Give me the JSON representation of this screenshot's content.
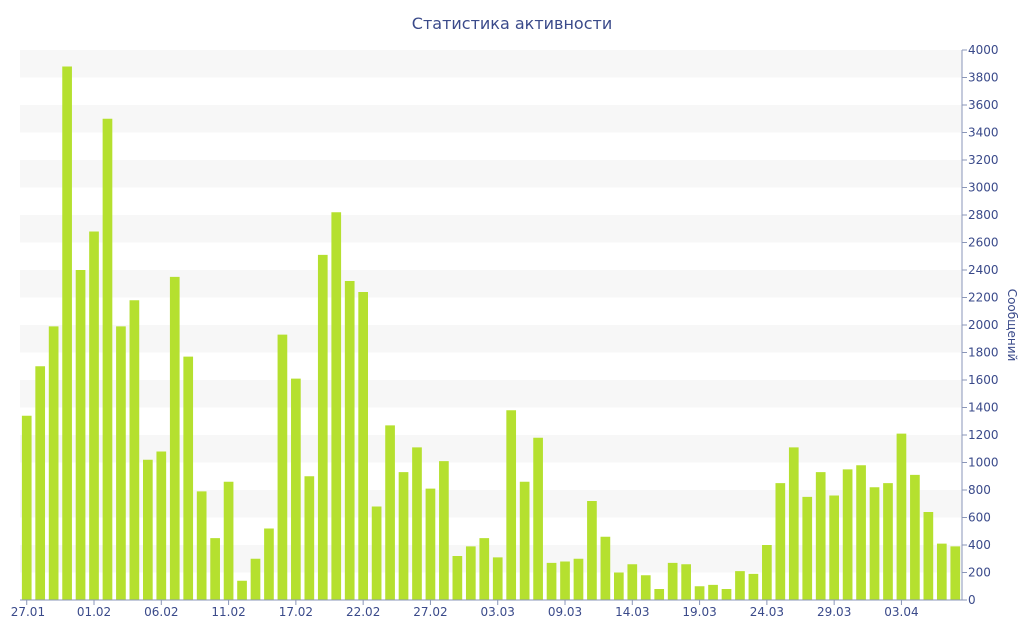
{
  "chart_data": {
    "type": "bar",
    "title": "Статистика активности",
    "ylabel": "Сообщений",
    "xlabel": "",
    "ylim": [
      0,
      4000
    ],
    "yticks": [
      0,
      200,
      400,
      600,
      800,
      1000,
      1200,
      1400,
      1600,
      1800,
      2000,
      2200,
      2400,
      2600,
      2800,
      3000,
      3200,
      3400,
      3600,
      3800,
      4000
    ],
    "y_axis_position": "right",
    "grid": "alternating horizontal bands",
    "bar_color": "#b5e02f",
    "band_color": "#f7f7f7",
    "text_color": "#3a4a8a",
    "x_tick_labels": [
      "27.01",
      "01.02",
      "06.02",
      "11.02",
      "17.02",
      "22.02",
      "27.02",
      "03.03",
      "09.03",
      "14.03",
      "19.03",
      "24.03",
      "29.03",
      "03.04"
    ],
    "x_tick_every": 5,
    "values": [
      1340,
      1700,
      1990,
      3880,
      2400,
      2680,
      3500,
      1990,
      2180,
      1020,
      1080,
      2350,
      1770,
      790,
      450,
      860,
      140,
      300,
      520,
      1930,
      1610,
      900,
      2510,
      2820,
      2320,
      2240,
      680,
      1270,
      930,
      1110,
      810,
      1010,
      320,
      390,
      450,
      310,
      1380,
      860,
      1180,
      270,
      280,
      300,
      720,
      460,
      200,
      260,
      180,
      80,
      270,
      260,
      100,
      110,
      80,
      210,
      190,
      400,
      850,
      1110,
      750,
      930,
      760,
      950,
      980,
      820,
      850,
      1210,
      910,
      640,
      410,
      390
    ]
  }
}
